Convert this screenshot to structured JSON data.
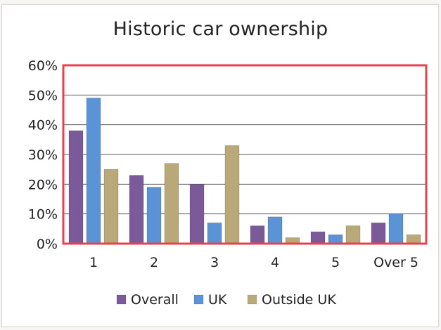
{
  "chart_data": {
    "type": "bar",
    "title": "Historic car ownership",
    "xlabel": "",
    "ylabel": "",
    "categories": [
      "1",
      "2",
      "3",
      "4",
      "5",
      "Over 5"
    ],
    "y_tick_labels": [
      "0%",
      "10%",
      "20%",
      "30%",
      "40%",
      "50%",
      "60%"
    ],
    "y_ticks": [
      0,
      10,
      20,
      30,
      40,
      50,
      60
    ],
    "ylim": [
      0,
      60
    ],
    "grid": true,
    "legend_position": "bottom",
    "series": [
      {
        "name": "Overall",
        "color": "#7b5a99",
        "values": [
          38,
          23,
          20,
          6,
          4,
          7
        ]
      },
      {
        "name": "UK",
        "color": "#5a93d6",
        "values": [
          49,
          19,
          7,
          9,
          3,
          10
        ]
      },
      {
        "name": "Outside UK",
        "color": "#b9a878",
        "values": [
          25,
          27,
          33,
          2,
          6,
          3
        ]
      }
    ],
    "plot_border_color": "#e8414b"
  }
}
